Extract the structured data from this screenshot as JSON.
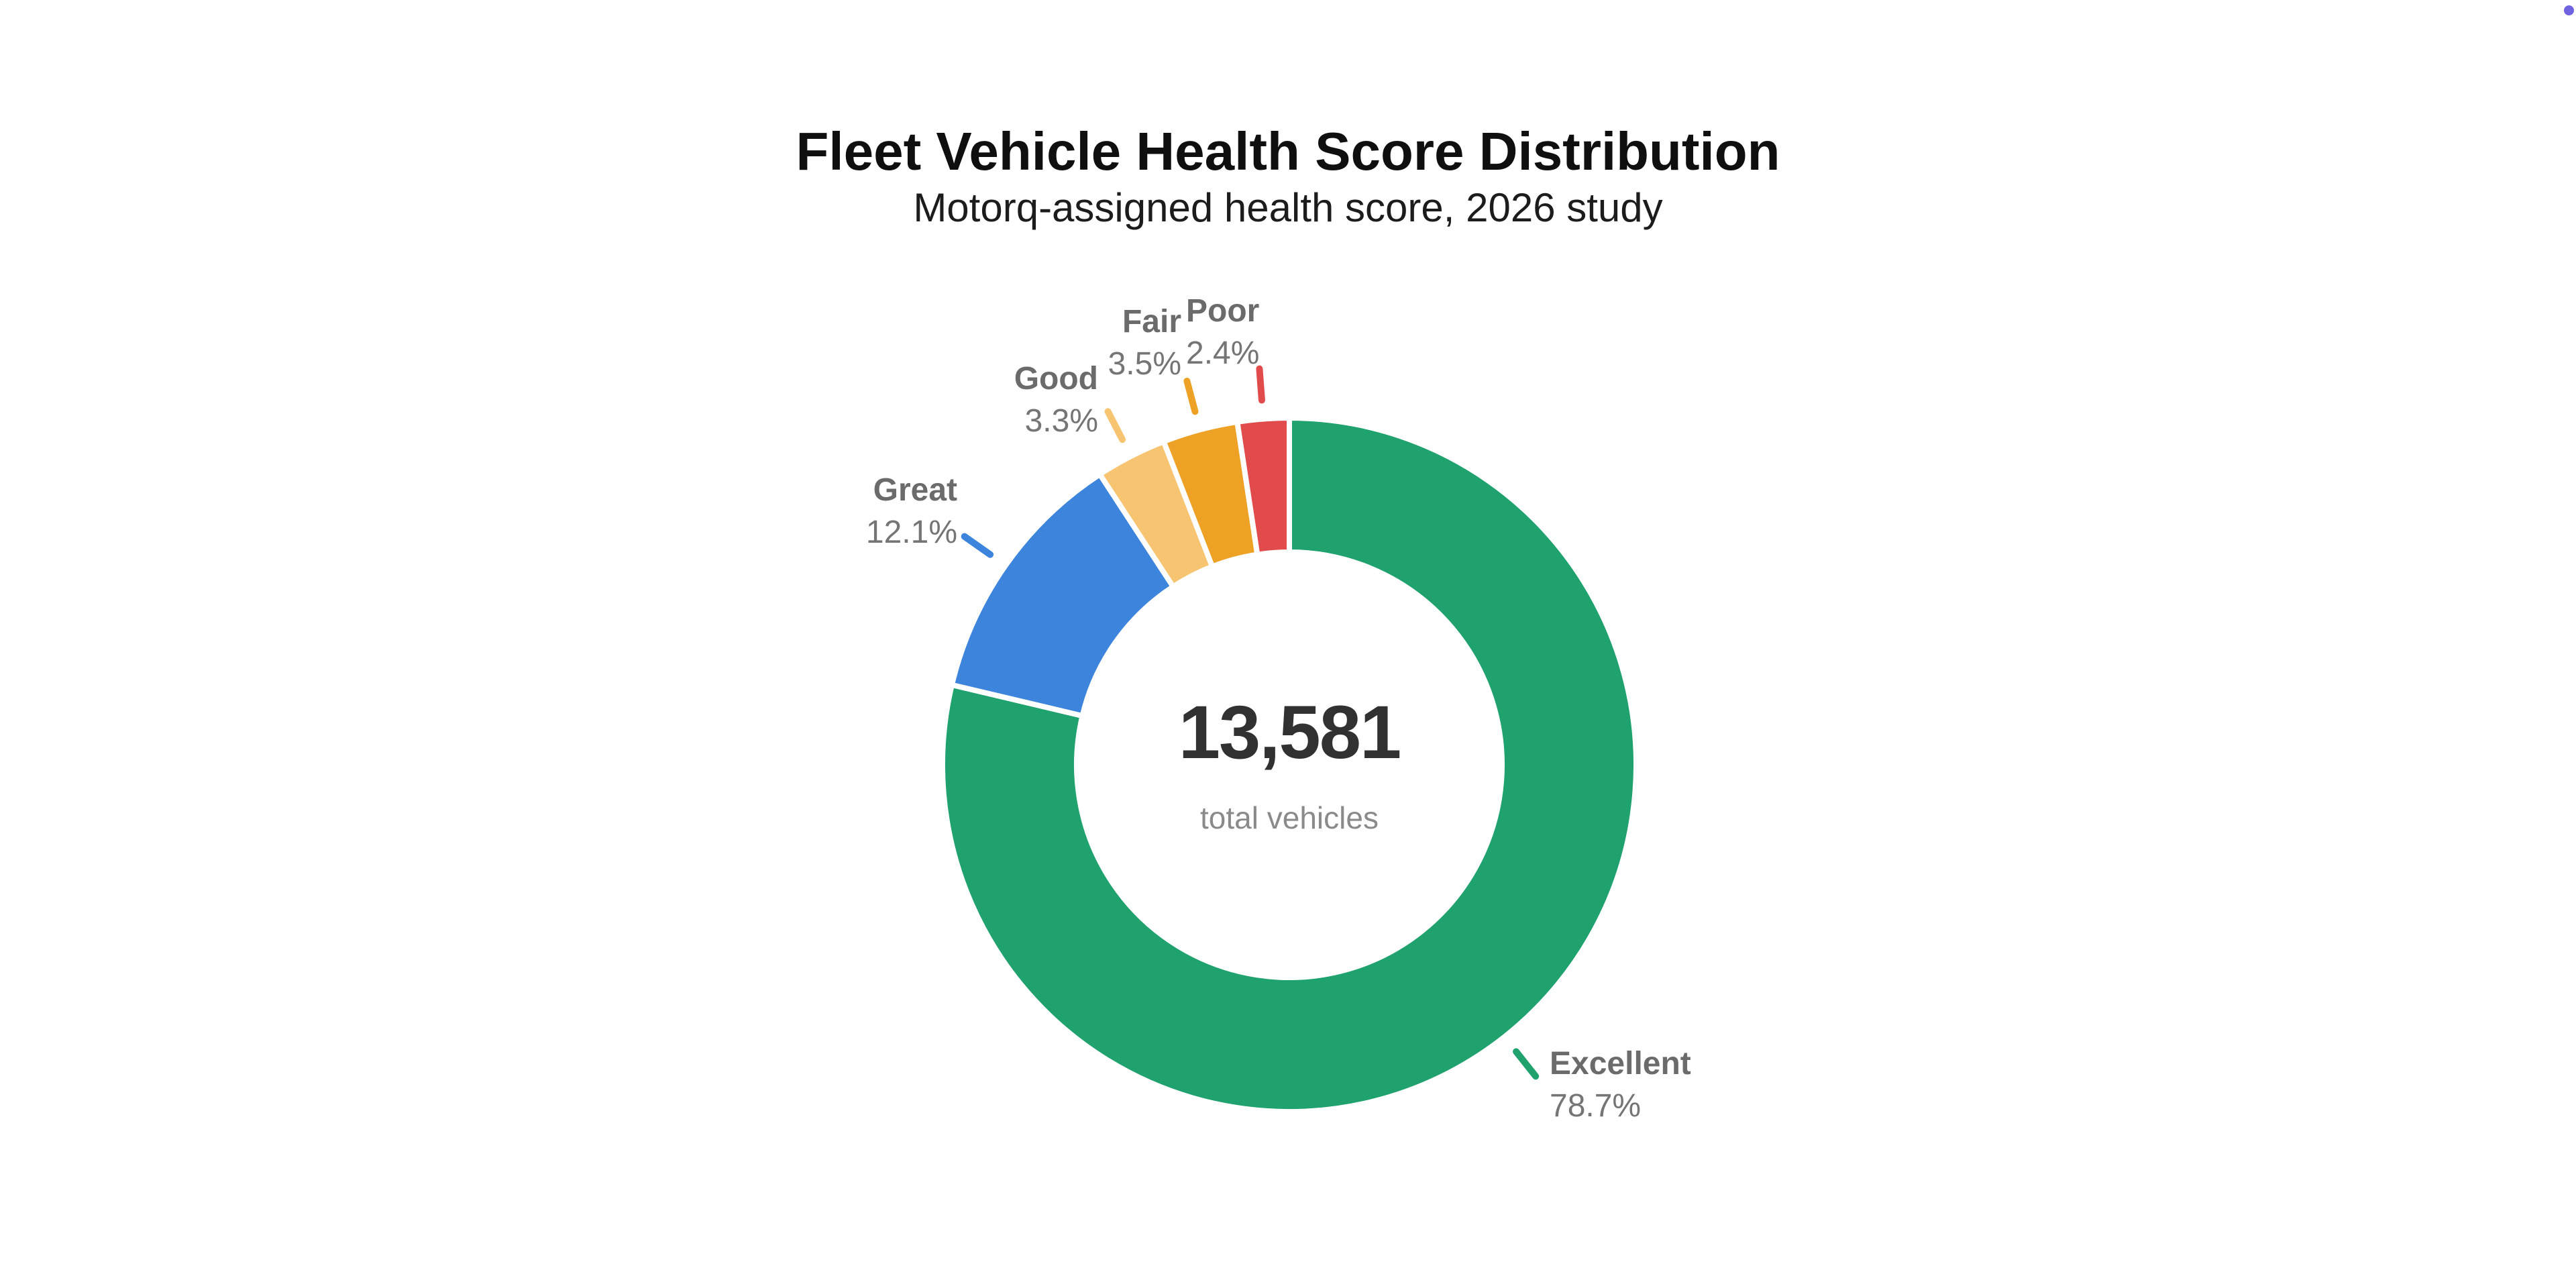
{
  "header": {
    "title": "Fleet Vehicle Health Score Distribution",
    "subtitle": "Motorq-assigned health score, 2026 study"
  },
  "center": {
    "total": "13,581",
    "caption": "total vehicles"
  },
  "chart_data": {
    "type": "pie",
    "donut": true,
    "title": "Fleet Vehicle Health Score Distribution",
    "subtitle": "Motorq-assigned health score, 2026 study",
    "start_angle_deg": 0,
    "direction": "clockwise",
    "center_label": {
      "value": 13581,
      "text": "13,581",
      "caption": "total vehicles"
    },
    "slices": [
      {
        "label": "Excellent",
        "pct": 78.7,
        "pct_label": "78.7%",
        "color": "#1FA26E"
      },
      {
        "label": "Great",
        "pct": 12.1,
        "pct_label": "12.1%",
        "color": "#3D85DC"
      },
      {
        "label": "Good",
        "pct": 3.3,
        "pct_label": "3.3%",
        "color": "#F7C571"
      },
      {
        "label": "Fair",
        "pct": 3.5,
        "pct_label": "3.5%",
        "color": "#EDA226"
      },
      {
        "label": "Poor",
        "pct": 2.4,
        "pct_label": "2.4%",
        "color": "#E24B4B"
      }
    ],
    "label_color": "#6f6f6f",
    "gap_color": "#ffffff",
    "legend_position": "none",
    "grid": false
  },
  "misc": {
    "corner_dot_color": "#6F63E0"
  }
}
